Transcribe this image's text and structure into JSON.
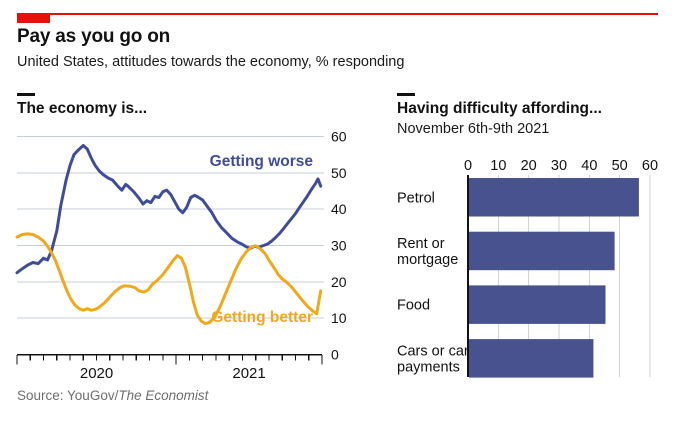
{
  "header": {
    "title": "Pay as you go on",
    "subtitle": "United States, attitudes towards the economy, % responding",
    "accent_color": "#e3120b"
  },
  "footer": {
    "source_prefix": "Source: YouGov/",
    "source_italic": "The Economist"
  },
  "chart_data": [
    {
      "type": "line",
      "title": "The economy is...",
      "x_unit": "months since Jan 2020",
      "x_range": [
        "Jan 2020",
        "Nov 2021"
      ],
      "x_tick_labels": [
        "2020",
        "2021"
      ],
      "ylim": [
        0,
        60
      ],
      "yticks": [
        0,
        10,
        20,
        30,
        40,
        50,
        60
      ],
      "grid": "horizontal",
      "gridline_color": "#c7ced6",
      "series": [
        {
          "name": "Getting worse",
          "color": "#3f4d99",
          "points": [
            [
              0,
              22.5
            ],
            [
              0.4,
              23.6
            ],
            [
              0.8,
              24.6
            ],
            [
              1.2,
              25.3
            ],
            [
              1.6,
              25.0
            ],
            [
              2.0,
              26.5
            ],
            [
              2.3,
              26.0
            ],
            [
              2.6,
              28.5
            ],
            [
              3.0,
              34.0
            ],
            [
              3.3,
              41.0
            ],
            [
              3.7,
              48.0
            ],
            [
              4.0,
              52.0
            ],
            [
              4.3,
              55.0
            ],
            [
              4.7,
              56.5
            ],
            [
              5.0,
              57.5
            ],
            [
              5.3,
              56.5
            ],
            [
              5.6,
              54.0
            ],
            [
              5.9,
              52.0
            ],
            [
              6.2,
              50.5
            ],
            [
              6.5,
              49.5
            ],
            [
              6.9,
              48.5
            ],
            [
              7.2,
              48.0
            ],
            [
              7.6,
              46.3
            ],
            [
              7.9,
              45.2
            ],
            [
              8.2,
              46.8
            ],
            [
              8.4,
              46.2
            ],
            [
              8.8,
              44.8
            ],
            [
              9.2,
              43.0
            ],
            [
              9.5,
              41.4
            ],
            [
              9.8,
              42.3
            ],
            [
              10.1,
              41.8
            ],
            [
              10.4,
              43.5
            ],
            [
              10.7,
              43.2
            ],
            [
              11.0,
              44.8
            ],
            [
              11.3,
              45.2
            ],
            [
              11.6,
              44.0
            ],
            [
              11.9,
              42.0
            ],
            [
              12.2,
              40.0
            ],
            [
              12.5,
              39.0
            ],
            [
              12.8,
              40.5
            ],
            [
              13.1,
              43.2
            ],
            [
              13.4,
              43.8
            ],
            [
              13.7,
              43.2
            ],
            [
              14.0,
              42.5
            ],
            [
              14.3,
              41.0
            ],
            [
              14.7,
              39.0
            ],
            [
              15.0,
              37.0
            ],
            [
              15.4,
              35.0
            ],
            [
              15.8,
              33.5
            ],
            [
              16.2,
              32.0
            ],
            [
              16.6,
              31.0
            ],
            [
              17.0,
              30.3
            ],
            [
              17.3,
              29.6
            ],
            [
              17.6,
              29.2
            ],
            [
              17.9,
              29.8
            ],
            [
              18.2,
              29.5
            ],
            [
              18.6,
              30.0
            ],
            [
              18.9,
              30.4
            ],
            [
              19.2,
              31.2
            ],
            [
              19.5,
              32.2
            ],
            [
              19.8,
              33.3
            ],
            [
              20.1,
              34.6
            ],
            [
              20.4,
              36.0
            ],
            [
              20.7,
              37.4
            ],
            [
              21.0,
              38.8
            ],
            [
              21.3,
              40.4
            ],
            [
              21.6,
              42.0
            ],
            [
              21.9,
              43.6
            ],
            [
              22.2,
              45.4
            ],
            [
              22.5,
              47.0
            ],
            [
              22.7,
              48.3
            ],
            [
              22.9,
              46.3
            ]
          ]
        },
        {
          "name": "Getting better",
          "color": "#f0a81c",
          "points": [
            [
              0,
              32.3
            ],
            [
              0.4,
              33.0
            ],
            [
              0.8,
              33.2
            ],
            [
              1.2,
              33.0
            ],
            [
              1.6,
              32.3
            ],
            [
              2.0,
              31.2
            ],
            [
              2.3,
              29.8
            ],
            [
              2.6,
              28.0
            ],
            [
              2.9,
              25.8
            ],
            [
              3.2,
              23.0
            ],
            [
              3.5,
              20.0
            ],
            [
              3.8,
              17.2
            ],
            [
              4.1,
              15.0
            ],
            [
              4.4,
              13.5
            ],
            [
              4.7,
              12.6
            ],
            [
              5.0,
              12.2
            ],
            [
              5.3,
              12.6
            ],
            [
              5.6,
              12.2
            ],
            [
              5.9,
              12.4
            ],
            [
              6.2,
              13.0
            ],
            [
              6.6,
              14.2
            ],
            [
              7.0,
              15.8
            ],
            [
              7.4,
              17.3
            ],
            [
              7.8,
              18.5
            ],
            [
              8.1,
              18.9
            ],
            [
              8.5,
              18.8
            ],
            [
              8.9,
              18.4
            ],
            [
              9.2,
              17.5
            ],
            [
              9.6,
              17.2
            ],
            [
              9.9,
              17.8
            ],
            [
              10.2,
              19.3
            ],
            [
              10.6,
              20.5
            ],
            [
              11.0,
              22.0
            ],
            [
              11.4,
              24.0
            ],
            [
              11.8,
              26.0
            ],
            [
              12.1,
              27.2
            ],
            [
              12.4,
              26.5
            ],
            [
              12.7,
              24.0
            ],
            [
              13.0,
              19.5
            ],
            [
              13.3,
              14.5
            ],
            [
              13.6,
              10.8
            ],
            [
              13.9,
              9.2
            ],
            [
              14.2,
              8.5
            ],
            [
              14.5,
              8.8
            ],
            [
              14.9,
              10.2
            ],
            [
              15.3,
              13.0
            ],
            [
              15.7,
              16.5
            ],
            [
              16.1,
              20.0
            ],
            [
              16.5,
              23.5
            ],
            [
              16.9,
              26.3
            ],
            [
              17.3,
              28.3
            ],
            [
              17.7,
              29.6
            ],
            [
              18.0,
              29.9
            ],
            [
              18.3,
              29.2
            ],
            [
              18.7,
              27.8
            ],
            [
              19.0,
              26.0
            ],
            [
              19.4,
              23.8
            ],
            [
              19.7,
              22.0
            ],
            [
              20.0,
              20.8
            ],
            [
              20.3,
              20.0
            ],
            [
              20.7,
              18.6
            ],
            [
              21.1,
              16.8
            ],
            [
              21.5,
              15.0
            ],
            [
              21.9,
              13.3
            ],
            [
              22.3,
              12.0
            ],
            [
              22.6,
              11.2
            ],
            [
              22.9,
              17.5
            ]
          ]
        }
      ]
    },
    {
      "type": "bar",
      "title": "Having difficulty affording...",
      "subtitle": "November 6th-9th 2021",
      "orientation": "horizontal",
      "categories": [
        "Petrol",
        "Rent or mortgage",
        "Food",
        "Cars or car payments"
      ],
      "category_lines": [
        [
          "Petrol"
        ],
        [
          "Rent or",
          "mortgage"
        ],
        [
          "Food"
        ],
        [
          "Cars or car",
          "payments"
        ]
      ],
      "values": [
        56,
        48,
        45,
        41
      ],
      "xlim": [
        0,
        60
      ],
      "xticks": [
        0,
        10,
        20,
        30,
        40,
        50,
        60
      ],
      "bar_color": "#47528f",
      "gridline_color": "#ccd3da"
    }
  ]
}
